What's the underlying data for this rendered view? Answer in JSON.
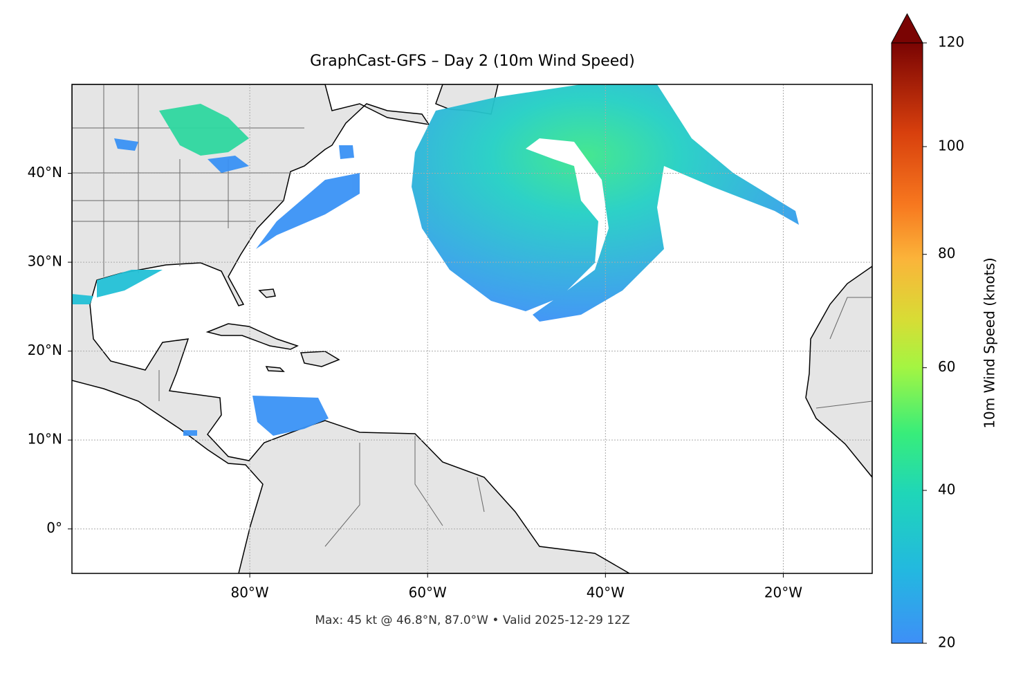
{
  "title": "GraphCast-GFS – Day 2 (10m Wind Speed)",
  "map": {
    "xlim": [
      -100,
      -10
    ],
    "ylim": [
      -5,
      50
    ],
    "xticks": [
      {
        "value": -80,
        "label": "80°W"
      },
      {
        "value": -60,
        "label": "60°W"
      },
      {
        "value": -40,
        "label": "40°W"
      },
      {
        "value": -20,
        "label": "20°W"
      }
    ],
    "yticks": [
      {
        "value": 0,
        "label": "0°"
      },
      {
        "value": 10,
        "label": "10°N"
      },
      {
        "value": 20,
        "label": "20°N"
      },
      {
        "value": 30,
        "label": "30°N"
      },
      {
        "value": 40,
        "label": "40°N"
      }
    ],
    "grid": true
  },
  "colorbar": {
    "label": "10m Wind Speed (knots)",
    "lim": [
      20,
      120
    ],
    "ticks": [
      20,
      40,
      60,
      80,
      100,
      120
    ],
    "norm": {
      "type": "power",
      "gamma": 0.85
    }
  },
  "footer": "Max: 45 kt @ 46.8°N, 87.0°W • Valid 2025-12-29 12Z"
}
